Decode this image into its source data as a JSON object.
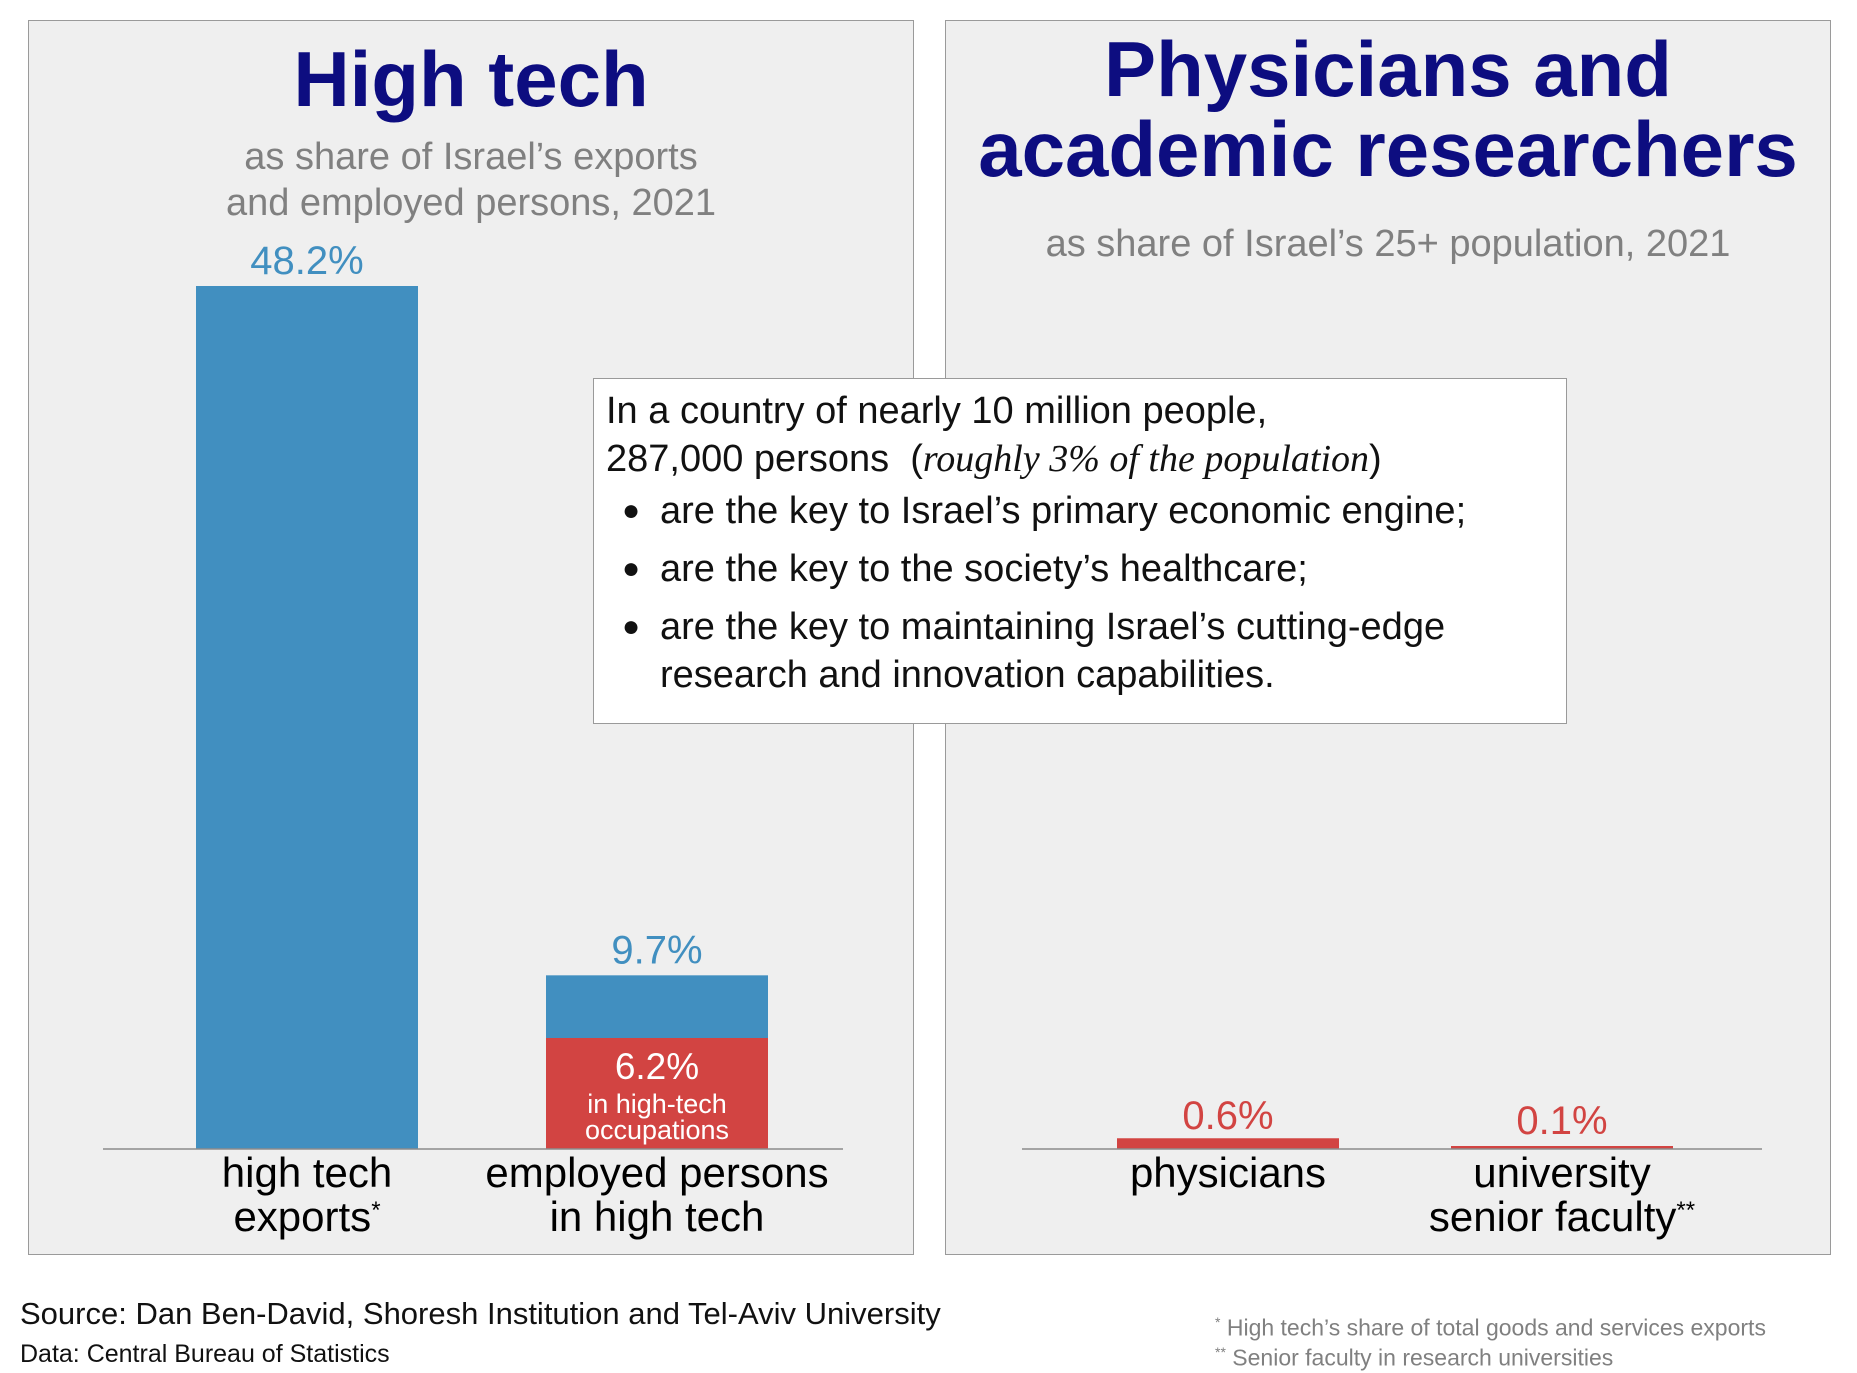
{
  "left_panel": {
    "title": "High tech",
    "subtitle_line1": "as share of Israel’s exports",
    "subtitle_line2": "and employed persons, 2021"
  },
  "right_panel": {
    "title_line1": "Physicians and",
    "title_line2": "academic researchers",
    "subtitle": "as share of Israel’s 25+ population, 2021"
  },
  "callout": {
    "line1": "In a country of nearly 10 million people,",
    "line2_text": "287,000 persons",
    "line2_italic": "roughly 3% of the population",
    "bullets": [
      "are the key to Israel’s primary economic engine;",
      "are the key to the society’s healthcare;",
      "are the key to maintaining Israel’s cutting-edge",
      "research and innovation capabilities."
    ]
  },
  "footer": {
    "source": "Source: Dan Ben-David, Shoresh Institution and Tel-Aviv University",
    "data": "Data: Central Bureau of Statistics",
    "note1_marker": "*",
    "note1": "High tech’s share of total goods and services exports",
    "note2_marker": "**",
    "note2": "Senior faculty in research universities"
  },
  "colors": {
    "blue_bar": "#418fc0",
    "red_bar": "#d24442",
    "title": "#0d0d80",
    "subtitle": "#808080"
  },
  "chart_data": [
    {
      "type": "bar",
      "title": "High tech",
      "subtitle": "as share of Israel’s exports and employed persons, 2021",
      "categories": [
        {
          "line1": "high tech",
          "line2": "exports",
          "marker": "*"
        },
        {
          "line1": "employed persons",
          "line2": "in high tech",
          "marker": ""
        }
      ],
      "series": [
        {
          "values": [
            48.2,
            9.7
          ],
          "labels": [
            "48.2%",
            "9.7%"
          ],
          "color": "#418fc0"
        },
        {
          "values": [
            null,
            6.2
          ],
          "labels": [
            null,
            "6.2%"
          ],
          "sublabels": [
            null,
            [
              "in high-tech",
              "occupations"
            ]
          ],
          "color": "#d24442"
        }
      ],
      "ylim": [
        0,
        48.2
      ]
    },
    {
      "type": "bar",
      "title": "Physicians and academic researchers",
      "subtitle": "as share of Israel’s 25+ population, 2021",
      "categories": [
        {
          "line1": "physicians",
          "line2": "",
          "marker": ""
        },
        {
          "line1": "university",
          "line2": "senior faculty",
          "marker": "**"
        }
      ],
      "series": [
        {
          "values": [
            0.6,
            0.1
          ],
          "labels": [
            "0.6%",
            "0.1%"
          ],
          "color": "#d24442"
        }
      ],
      "ylim": [
        0,
        48.2
      ]
    }
  ]
}
